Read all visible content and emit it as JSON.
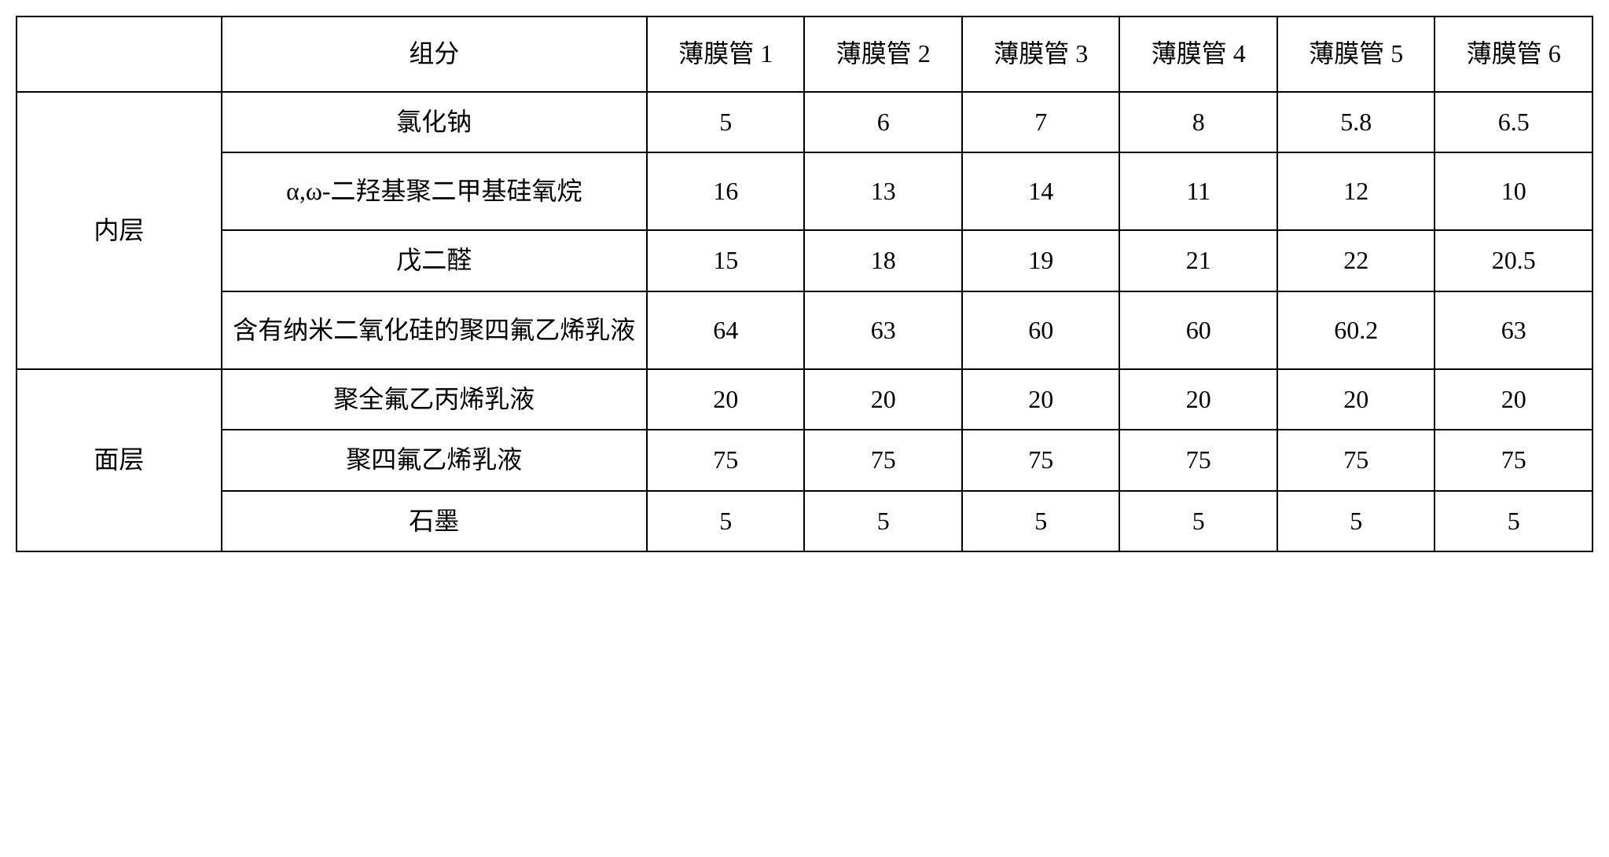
{
  "table": {
    "columns": {
      "category_label": "",
      "component_label": "组分",
      "tubes": [
        "薄膜管 1",
        "薄膜管 2",
        "薄膜管 3",
        "薄膜管 4",
        "薄膜管 5",
        "薄膜管 6"
      ]
    },
    "sections": [
      {
        "category": "内层",
        "rows": [
          {
            "component": "氯化钠",
            "values": [
              "5",
              "6",
              "7",
              "8",
              "5.8",
              "6.5"
            ]
          },
          {
            "component": "α,ω-二羟基聚二甲基硅氧烷",
            "values": [
              "16",
              "13",
              "14",
              "11",
              "12",
              "10"
            ]
          },
          {
            "component": "戊二醛",
            "values": [
              "15",
              "18",
              "19",
              "21",
              "22",
              "20.5"
            ]
          },
          {
            "component": "含有纳米二氧化硅的聚四氟乙烯乳液",
            "values": [
              "64",
              "63",
              "60",
              "60",
              "60.2",
              "63"
            ]
          }
        ]
      },
      {
        "category": "面层",
        "rows": [
          {
            "component": "聚全氟乙丙烯乳液",
            "values": [
              "20",
              "20",
              "20",
              "20",
              "20",
              "20"
            ]
          },
          {
            "component": "聚四氟乙烯乳液",
            "values": [
              "75",
              "75",
              "75",
              "75",
              "75",
              "75"
            ]
          },
          {
            "component": "石墨",
            "values": [
              "5",
              "5",
              "5",
              "5",
              "5",
              "5"
            ]
          }
        ]
      }
    ],
    "styling": {
      "border_color": "#000000",
      "border_width": 2,
      "background_color": "#ffffff",
      "text_color": "#000000",
      "font_family": "SimSun",
      "font_size": 32,
      "text_align": "center",
      "vertical_align": "middle",
      "col_widths": {
        "category": "13%",
        "component": "27%",
        "data": "10%"
      }
    }
  }
}
